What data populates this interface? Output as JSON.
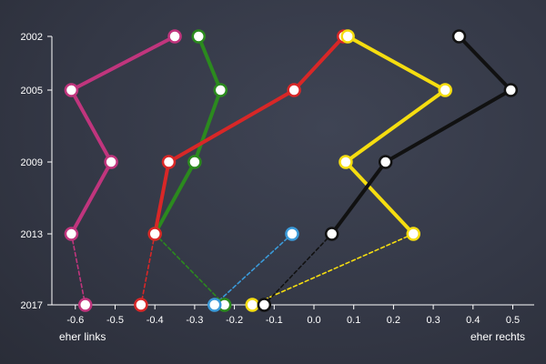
{
  "chart_data": {
    "type": "line",
    "title": "",
    "xlabel": "",
    "ylabel": "",
    "x_min_label": "eher links",
    "x_max_label": "eher rechts",
    "xlim": [
      -0.7,
      0.55
    ],
    "x_ticks": [
      "-0.6",
      "-0.5",
      "-0.4",
      "-0.3",
      "-0.2",
      "-0.1",
      "0.0",
      "0.1",
      "0.2",
      "0.3",
      "0.4",
      "0.5"
    ],
    "y_years": [
      "2002",
      "2005",
      "2009",
      "2013",
      "2017"
    ],
    "grid": false,
    "legend": "none",
    "series": [
      {
        "color": "#c0357d",
        "points": [
          {
            "year": 2002,
            "x": -0.35
          },
          {
            "year": 2005,
            "x": -0.61
          },
          {
            "year": 2009,
            "x": -0.51
          },
          {
            "year": 2013,
            "x": -0.61
          },
          {
            "year": 2017,
            "x": -0.575,
            "dashed": true
          }
        ]
      },
      {
        "color": "#2b8a1e",
        "points": [
          {
            "year": 2002,
            "x": -0.29
          },
          {
            "year": 2005,
            "x": -0.235
          },
          {
            "year": 2009,
            "x": -0.3
          },
          {
            "year": 2013,
            "x": -0.4
          },
          {
            "year": 2017,
            "x": -0.225,
            "dashed": true
          }
        ]
      },
      {
        "color": "#d82727",
        "points": [
          {
            "year": 2002,
            "x": 0.075
          },
          {
            "year": 2005,
            "x": -0.05
          },
          {
            "year": 2009,
            "x": -0.365
          },
          {
            "year": 2013,
            "x": -0.4
          },
          {
            "year": 2017,
            "x": -0.435,
            "dashed": true
          }
        ]
      },
      {
        "color": "#f5dd10",
        "points": [
          {
            "year": 2002,
            "x": 0.085
          },
          {
            "year": 2005,
            "x": 0.33
          },
          {
            "year": 2009,
            "x": 0.08
          },
          {
            "year": 2013,
            "x": 0.25
          },
          {
            "year": 2017,
            "x": -0.155,
            "dashed": true
          }
        ]
      },
      {
        "color": "#111111",
        "points": [
          {
            "year": 2002,
            "x": 0.365
          },
          {
            "year": 2005,
            "x": 0.495
          },
          {
            "year": 2009,
            "x": 0.18
          },
          {
            "year": 2013,
            "x": 0.045
          },
          {
            "year": 2017,
            "x": -0.125,
            "dashed": true
          }
        ]
      },
      {
        "color": "#3a9ad9",
        "points": [
          {
            "year": 2013,
            "x": -0.055
          },
          {
            "year": 2017,
            "x": -0.25,
            "dashed": true
          }
        ]
      }
    ]
  }
}
